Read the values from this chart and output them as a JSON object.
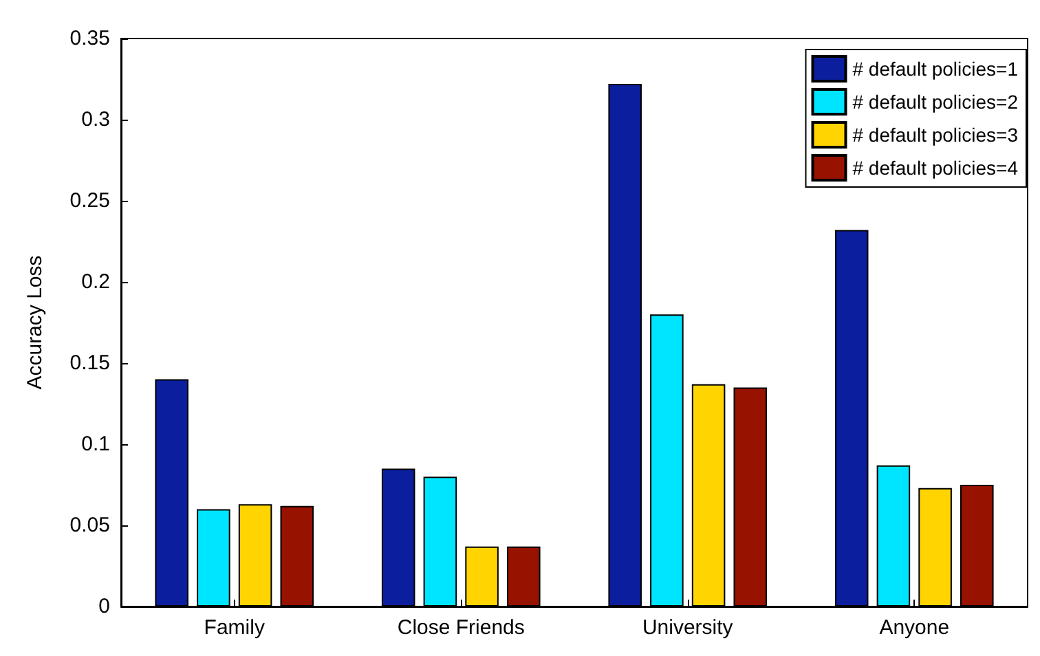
{
  "chart_data": {
    "type": "bar",
    "ylabel": "Accuracy Loss",
    "categories": [
      "Family",
      "Close Friends",
      "University",
      "Anyone"
    ],
    "series": [
      {
        "name": "# default policies=1",
        "color": "#0a1e9e",
        "values": [
          0.14,
          0.085,
          0.322,
          0.232
        ]
      },
      {
        "name": "# default policies=2",
        "color": "#00e5ff",
        "values": [
          0.06,
          0.08,
          0.18,
          0.087
        ]
      },
      {
        "name": "# default policies=3",
        "color": "#ffd400",
        "values": [
          0.063,
          0.037,
          0.137,
          0.073
        ]
      },
      {
        "name": "# default policies=4",
        "color": "#981200",
        "values": [
          0.062,
          0.037,
          0.135,
          0.075
        ]
      }
    ],
    "ylim": [
      0,
      0.35
    ],
    "yticks": [
      0,
      0.05,
      0.1,
      0.15,
      0.2,
      0.25,
      0.3,
      0.35
    ],
    "legend": "top right"
  }
}
